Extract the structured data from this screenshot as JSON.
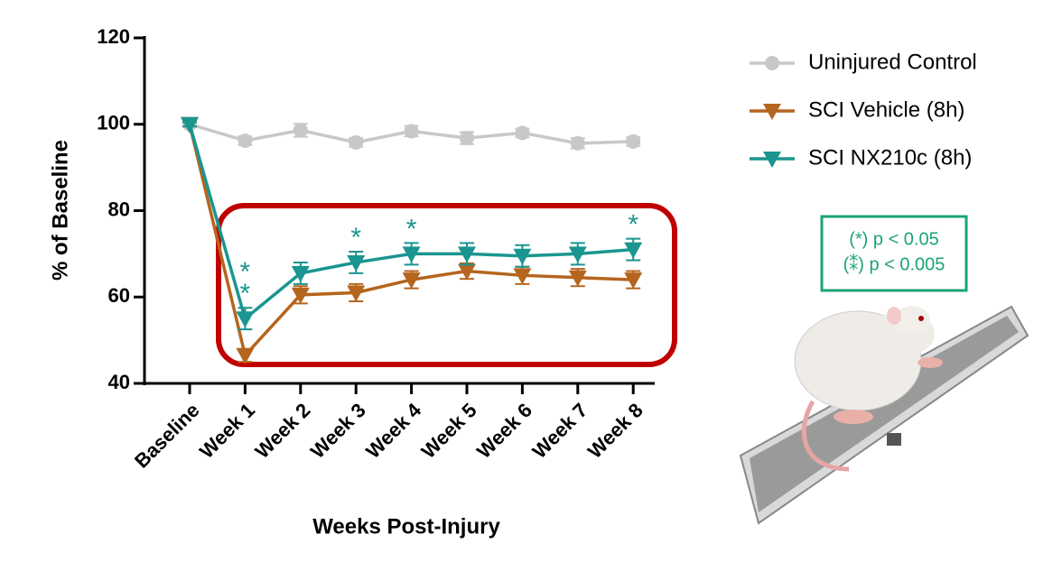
{
  "chart_data": {
    "type": "line",
    "xlabel": "Weeks Post-Injury",
    "ylabel": "% of Baseline",
    "categories": [
      "Baseline",
      "Week 1",
      "Week 2",
      "Week 3",
      "Week 4",
      "Week 5",
      "Week 6",
      "Week 7",
      "Week 8"
    ],
    "series": [
      {
        "name": "Uninjured Control",
        "color": "#c8c8c8",
        "marker": "circle",
        "values": [
          100,
          96.2,
          98.6,
          95.8,
          98.4,
          96.8,
          98.0,
          95.6,
          96.0
        ],
        "errors": [
          0.5,
          1.0,
          1.5,
          1.0,
          1.2,
          1.4,
          1.0,
          1.2,
          1.0
        ]
      },
      {
        "name": "SCI Vehicle (8h)",
        "color": "#b5651d",
        "marker": "triangle-down",
        "values": [
          100,
          46.5,
          60.5,
          61.0,
          64.0,
          66.0,
          65.0,
          64.5,
          64.0
        ],
        "errors": [
          0.5,
          1.5,
          2.0,
          2.0,
          2.0,
          1.8,
          2.0,
          2.0,
          2.0
        ]
      },
      {
        "name": "SCI NX210c (8h)",
        "color": "#1a9590",
        "marker": "triangle-down",
        "values": [
          100,
          55.0,
          65.5,
          68.0,
          70.0,
          70.0,
          69.5,
          70.0,
          71.0
        ],
        "errors": [
          0.5,
          2.5,
          2.5,
          2.5,
          2.5,
          2.5,
          2.5,
          2.5,
          2.5
        ]
      }
    ],
    "annotations": [
      {
        "category": "Week 1",
        "text": "**"
      },
      {
        "category": "Week 3",
        "text": "*"
      },
      {
        "category": "Week 4",
        "text": "*"
      },
      {
        "category": "Week 8",
        "text": "*"
      }
    ],
    "significance_legend": [
      "(*) p < 0.05",
      "(⁑) p < 0.005"
    ],
    "ylim": [
      40,
      120
    ],
    "yticks": [
      40,
      60,
      80,
      100,
      120
    ]
  }
}
